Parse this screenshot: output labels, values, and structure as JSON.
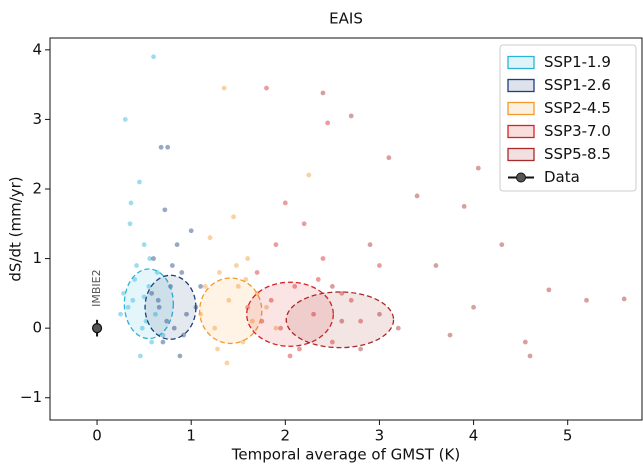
{
  "chart_data": {
    "type": "scatter",
    "title": "EAIS",
    "x_label": "Temporal average of GMST (K)",
    "y_label": "dS/dt (mm/yr)",
    "xlim": [
      -0.5,
      5.8
    ],
    "ylim": [
      -1.32,
      4.17
    ],
    "xticks": [
      0,
      1,
      2,
      3,
      4,
      5
    ],
    "yticks": [
      {
        "value": -1,
        "label": "−1"
      },
      0,
      1,
      2,
      3,
      4
    ],
    "legend": "upper right",
    "series": [
      {
        "name": "SSP1-1.9",
        "color": "#2bb3d9",
        "x": [
          0.3,
          0.6,
          0.45,
          0.35,
          0.5,
          0.42,
          0.55,
          0.38,
          0.62,
          0.48,
          0.33,
          0.58,
          0.4,
          0.52,
          0.7,
          0.28,
          0.46,
          0.64,
          0.36,
          0.5,
          0.25,
          0.56
        ],
        "values": [
          3.0,
          3.9,
          2.1,
          1.5,
          1.2,
          0.9,
          0.6,
          0.4,
          0.2,
          0.0,
          0.3,
          -0.2,
          0.7,
          0.1,
          -0.1,
          0.5,
          -0.4,
          0.8,
          1.8,
          0.45,
          0.2,
          1.0
        ],
        "ellipse": {
          "cx": 0.55,
          "cy": 0.35,
          "rx": 0.26,
          "ry": 0.5
        }
      },
      {
        "name": "SSP1-2.6",
        "color": "#1d3f7a",
        "x": [
          0.68,
          0.75,
          0.72,
          1.0,
          0.85,
          0.6,
          0.9,
          0.78,
          0.65,
          0.95,
          0.82,
          0.7,
          1.05,
          0.88,
          0.58,
          0.8,
          0.92,
          0.74,
          1.1,
          0.66
        ],
        "values": [
          2.6,
          2.6,
          1.7,
          1.4,
          1.2,
          1.0,
          0.8,
          0.6,
          0.4,
          0.2,
          0.0,
          -0.2,
          0.3,
          -0.4,
          0.5,
          0.9,
          -0.1,
          0.1,
          0.6,
          0.3
        ],
        "ellipse": {
          "cx": 0.78,
          "cy": 0.3,
          "rx": 0.27,
          "ry": 0.46
        }
      },
      {
        "name": "SSP2-4.5",
        "color": "#f39a2c",
        "x": [
          1.35,
          1.45,
          1.2,
          1.6,
          1.3,
          1.5,
          1.4,
          1.1,
          1.7,
          1.25,
          1.55,
          1.8,
          1.38,
          1.65,
          1.15,
          1.48,
          1.9,
          1.28,
          1.58,
          2.25
        ],
        "values": [
          3.45,
          1.6,
          1.3,
          1.0,
          0.8,
          0.6,
          0.4,
          0.2,
          0.5,
          0.0,
          -0.2,
          0.3,
          -0.5,
          0.1,
          0.6,
          0.9,
          0.0,
          -0.3,
          0.7,
          2.2
        ],
        "ellipse": {
          "cx": 1.42,
          "cy": 0.25,
          "rx": 0.33,
          "ry": 0.47
        }
      },
      {
        "name": "SSP3-7.0",
        "color": "#d62222",
        "x": [
          1.8,
          2.0,
          2.2,
          1.9,
          2.4,
          1.7,
          2.1,
          2.6,
          1.6,
          2.3,
          2.8,
          1.95,
          2.5,
          2.05,
          2.7,
          1.75,
          2.35,
          3.0,
          2.15,
          1.85,
          2.45
        ],
        "values": [
          3.45,
          1.8,
          1.5,
          1.2,
          1.0,
          0.8,
          0.6,
          0.5,
          0.3,
          0.2,
          0.1,
          0.0,
          -0.2,
          -0.4,
          0.4,
          0.1,
          0.7,
          0.9,
          -0.3,
          0.4,
          2.95
        ],
        "ellipse": {
          "cx": 2.05,
          "cy": 0.2,
          "rx": 0.46,
          "ry": 0.46
        }
      },
      {
        "name": "SSP5-8.5",
        "color": "#a82a2a",
        "x": [
          2.4,
          2.7,
          3.1,
          3.4,
          3.9,
          4.3,
          4.8,
          5.6,
          2.9,
          3.6,
          4.0,
          4.55,
          2.5,
          3.2,
          2.8,
          3.75,
          4.6,
          2.6,
          3.0,
          5.2,
          4.05
        ],
        "values": [
          3.38,
          3.05,
          2.45,
          1.9,
          1.75,
          1.2,
          0.55,
          0.42,
          1.2,
          0.9,
          0.3,
          -0.2,
          0.6,
          0.0,
          -0.3,
          -0.1,
          -0.4,
          0.1,
          0.2,
          0.4,
          2.3
        ],
        "ellipse": {
          "cx": 2.58,
          "cy": 0.12,
          "rx": 0.57,
          "ry": 0.4
        }
      }
    ],
    "data_point": {
      "name": "Data",
      "label": "IMBIE2",
      "x": 0,
      "value": 0,
      "error": 0.12,
      "color": "#555555"
    }
  }
}
